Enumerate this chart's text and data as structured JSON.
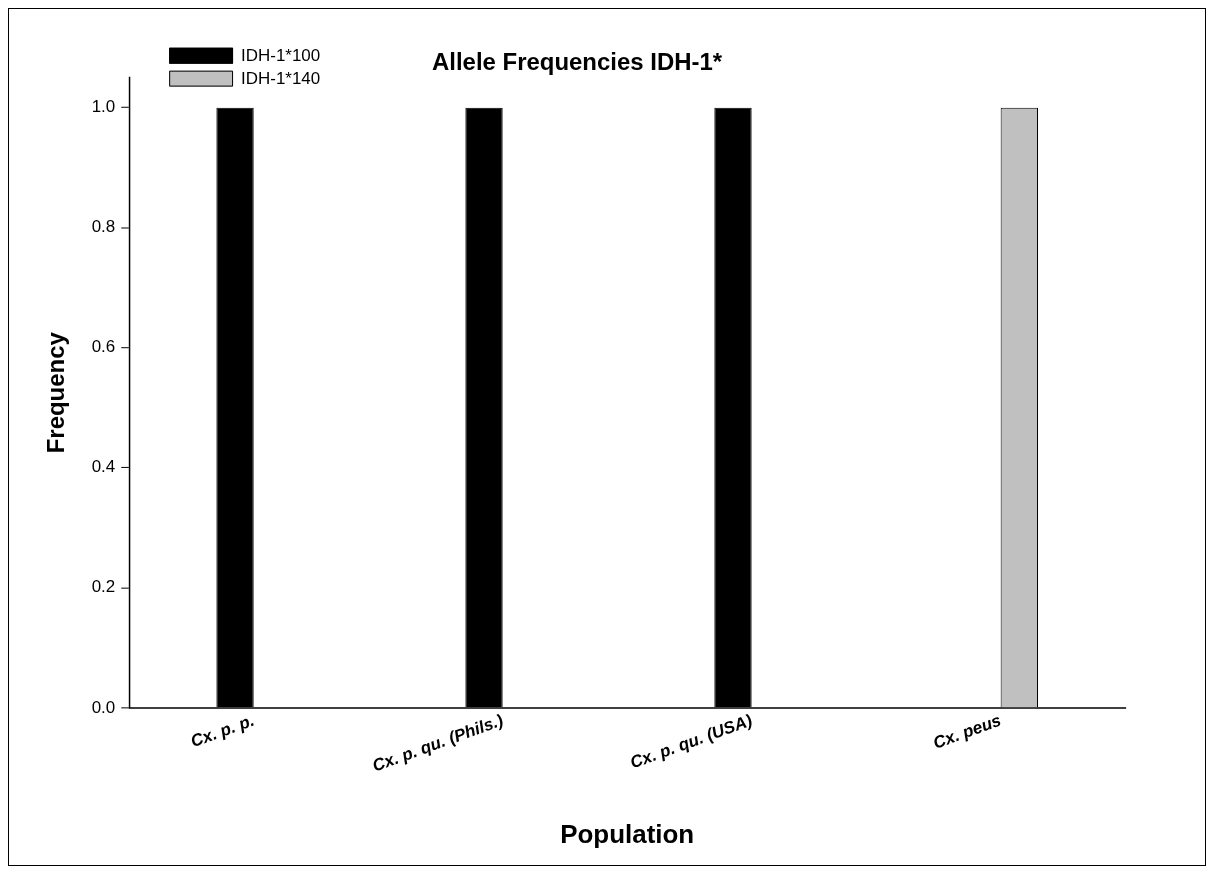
{
  "chart_data": {
    "type": "bar",
    "title": "Allele Frequencies IDH-1*",
    "xlabel": "Population",
    "ylabel": "Frequency",
    "categories": [
      "Cx. p. p.",
      "Cx. p. qu. (Phils.)",
      "Cx. p. qu. (USA)",
      "Cx. peus"
    ],
    "series": [
      {
        "name": "IDH-1*100",
        "color": "#000000",
        "values": [
          1,
          1,
          1,
          0
        ]
      },
      {
        "name": "IDH-1*140",
        "color": "#c0c0c0",
        "values": [
          0,
          0,
          0,
          1
        ]
      }
    ],
    "ylim": [
      0,
      1.05
    ],
    "yticks": [
      {
        "value": 0,
        "label": "0.0"
      },
      {
        "value": 0.2,
        "label": "0.2"
      },
      {
        "value": 0.4,
        "label": "0.4"
      },
      {
        "value": 0.6,
        "label": "0.6"
      },
      {
        "value": 0.8,
        "label": "0.8"
      },
      {
        "value": 1,
        "label": "1.0"
      }
    ],
    "grid": false,
    "legend": "top left"
  }
}
